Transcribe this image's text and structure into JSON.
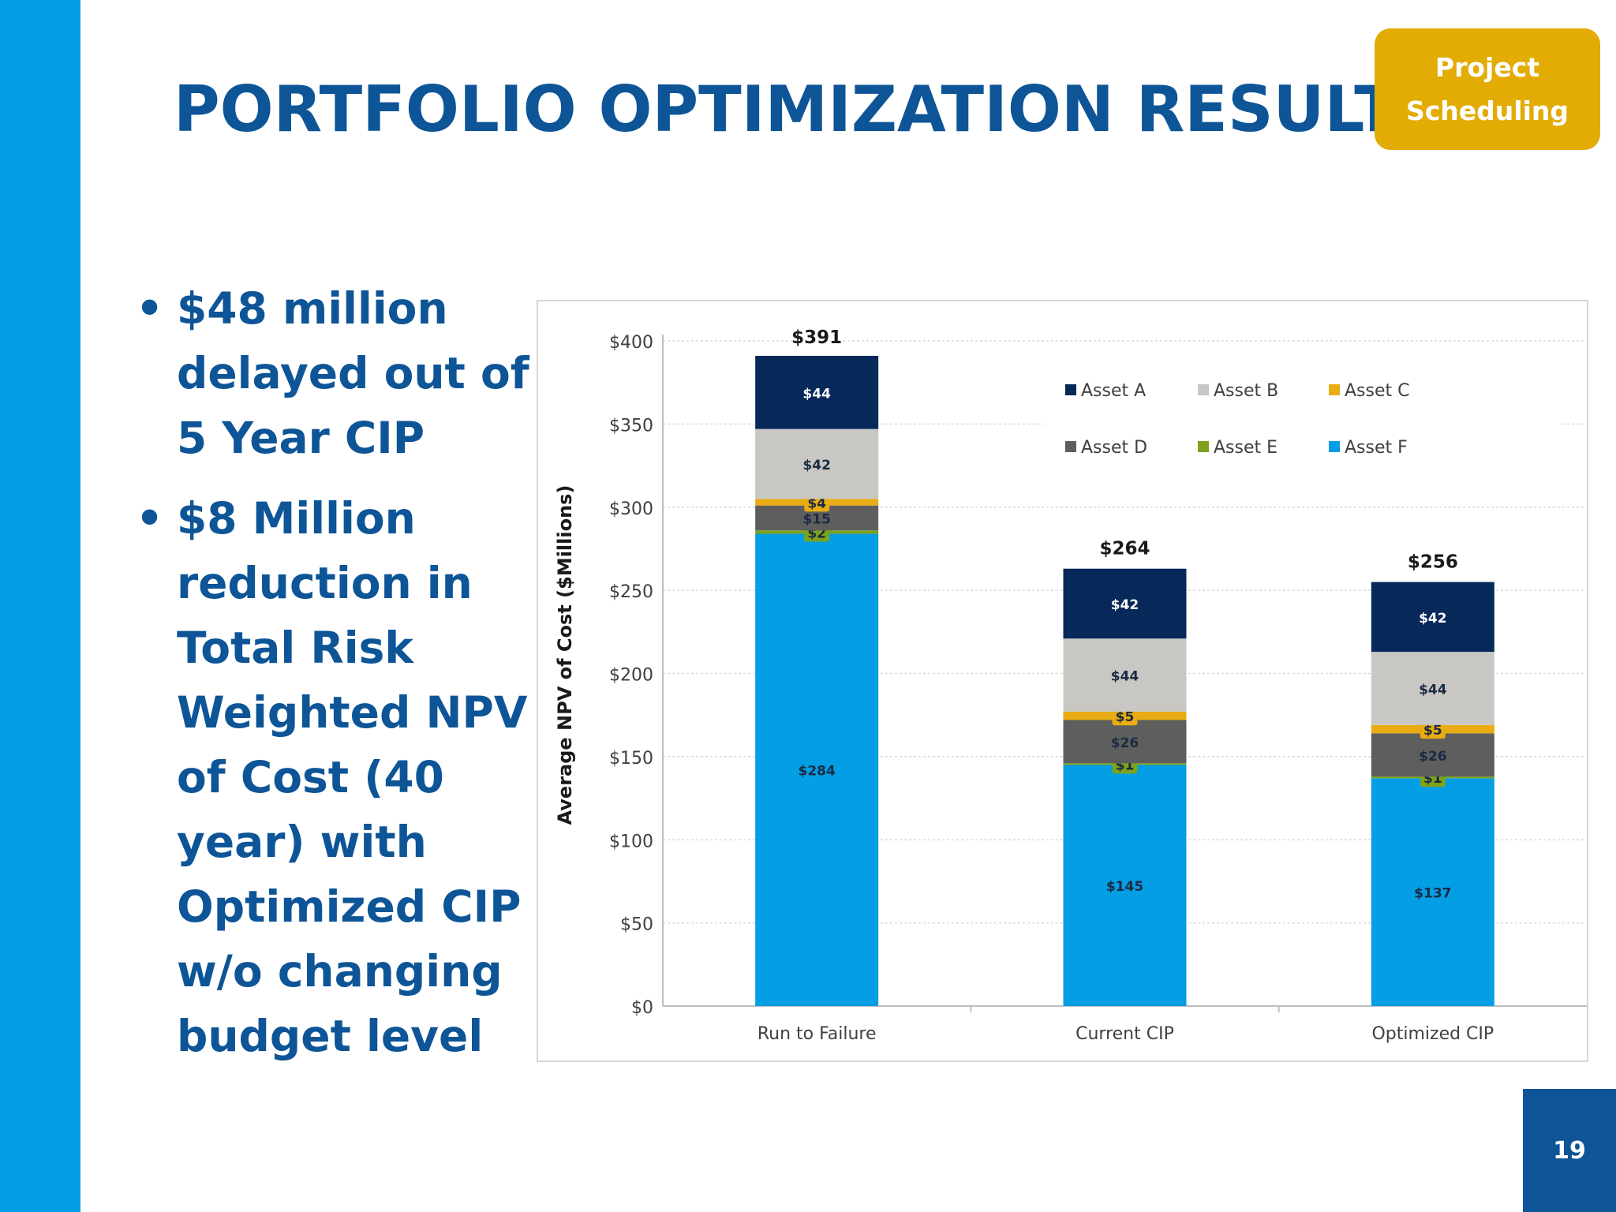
{
  "slide": {
    "title": "PORTFOLIO OPTIMIZATION RESULTS",
    "badge": "Project Scheduling",
    "page_number": "19",
    "bullets": [
      "$48 million delayed out of 5 Year CIP",
      "$8 Million reduction in Total Risk Weighted NPV of Cost (40 year) with Optimized CIP w/o changing budget level"
    ]
  },
  "chart_data": {
    "type": "bar",
    "stacked": true,
    "title": "",
    "xlabel": "",
    "ylabel": "Average NPV of Cost ($Millions)",
    "ylim": [
      0,
      400
    ],
    "yticks": [
      0,
      50,
      100,
      150,
      200,
      250,
      300,
      350,
      400
    ],
    "ytick_labels": [
      "$0",
      "$50",
      "$100",
      "$150",
      "$200",
      "$250",
      "$300",
      "$350",
      "$400"
    ],
    "grid": true,
    "legend_position": "top-right",
    "categories": [
      "Run to Failure",
      "Current CIP",
      "Optimized CIP"
    ],
    "totals": [
      391,
      264,
      256
    ],
    "total_labels": [
      "$391",
      "$264",
      "$256"
    ],
    "series": [
      {
        "name": "Asset F",
        "color": "#049ee4",
        "values": [
          284,
          145,
          137
        ],
        "labels": [
          "$284",
          "$145",
          "$137"
        ]
      },
      {
        "name": "Asset E",
        "color": "#7ea21b",
        "values": [
          2,
          1,
          1
        ],
        "labels": [
          "$2",
          "$1",
          "$1"
        ]
      },
      {
        "name": "Asset D",
        "color": "#5e5e5e",
        "values": [
          15,
          26,
          26
        ],
        "labels": [
          "$15",
          "$26",
          "$26"
        ]
      },
      {
        "name": "Asset C",
        "color": "#e9ac12",
        "values": [
          4,
          5,
          5
        ],
        "labels": [
          "$4",
          "$5",
          "$5"
        ]
      },
      {
        "name": "Asset B",
        "color": "#c8c7c3",
        "values": [
          42,
          44,
          44
        ],
        "labels": [
          "$42",
          "$44",
          "$44"
        ]
      },
      {
        "name": "Asset A",
        "color": "#07295a",
        "values": [
          44,
          42,
          42
        ],
        "labels": [
          "$44",
          "$42",
          "$42"
        ]
      }
    ],
    "legend_order": [
      "Asset A",
      "Asset B",
      "Asset C",
      "Asset D",
      "Asset E",
      "Asset F"
    ]
  }
}
